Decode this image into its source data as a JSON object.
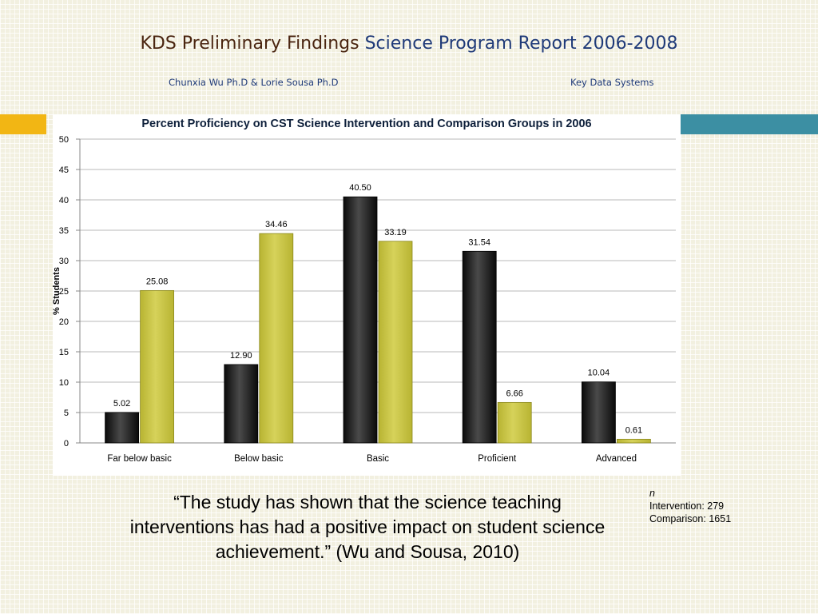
{
  "slide": {
    "title_part1": "KDS Preliminary Findings",
    "title_part2": "Science Program Report 2006-2008",
    "authors": "Chunxia Wu Ph.D & Lorie Sousa Ph.D",
    "organization": "Key Data Systems"
  },
  "colors": {
    "intervention": "#0a0a0a",
    "comparison": "#b8b432",
    "accent": "#f2b614",
    "teal_bar": "#3c8fa3"
  },
  "chart_data": {
    "type": "bar",
    "title": "Percent Proficiency on CST  Science Intervention and Comparison Groups in 2006",
    "ylabel": "% Students",
    "xlabel": "",
    "ylim": [
      0,
      50
    ],
    "yticks": [
      0,
      5,
      10,
      15,
      20,
      25,
      30,
      35,
      40,
      45,
      50
    ],
    "categories": [
      "Far below basic",
      "Below basic",
      "Basic",
      "Proficient",
      "Advanced"
    ],
    "series": [
      {
        "name": "Intervention",
        "values": [
          5.02,
          12.9,
          40.5,
          31.54,
          10.04
        ],
        "labels": [
          "5.02",
          "12.90",
          "40.50",
          "31.54",
          "10.04"
        ]
      },
      {
        "name": "Comparison",
        "values": [
          25.08,
          34.46,
          33.19,
          6.66,
          0.61
        ],
        "labels": [
          "25.08",
          "34.46",
          "33.19",
          "6.66",
          "0.61"
        ]
      }
    ],
    "grid": true,
    "legend_position": "right"
  },
  "quote": "“The study has shown that the science teaching interventions has had a positive impact on student science achievement.” (Wu and Sousa, 2010)",
  "sample": {
    "label": "n",
    "lines": [
      "Intervention: 279",
      "Comparison: 1651"
    ]
  }
}
